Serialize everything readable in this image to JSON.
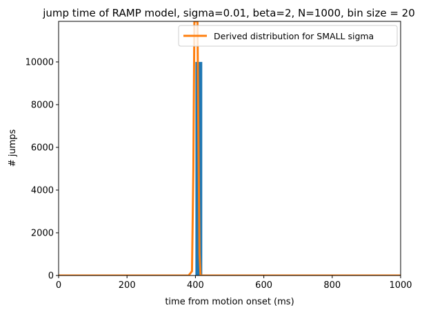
{
  "chart_data": {
    "type": "bar",
    "title": "jump time of RAMP model, sigma=0.01, beta=2, N=1000, bin size = 20",
    "xlabel": "time from motion onset (ms)",
    "ylabel": "# jumps",
    "xlim": [
      0,
      1000
    ],
    "ylim": [
      0,
      11900
    ],
    "xticks": [
      0,
      200,
      400,
      600,
      800,
      1000
    ],
    "yticks": [
      0,
      2000,
      4000,
      6000,
      8000,
      10000
    ],
    "grid": false,
    "legend_position": "top-right",
    "bar_color": "#1f77b4",
    "line_color": "#ff7f0e",
    "histogram": {
      "bin_size": 20,
      "bins": [
        {
          "start": 400,
          "end": 420,
          "count": 10000
        }
      ]
    },
    "series": [
      {
        "name": "Derived distribution for SMALL sigma",
        "type": "line",
        "x": [
          0,
          200,
          380,
          390,
          394,
          397,
          400,
          403,
          406,
          409,
          412,
          415,
          420,
          600,
          1000
        ],
        "y": [
          0,
          0,
          0,
          200,
          5000,
          11900,
          11900,
          11900,
          11900,
          6000,
          1000,
          0,
          0,
          0,
          0
        ]
      }
    ]
  }
}
